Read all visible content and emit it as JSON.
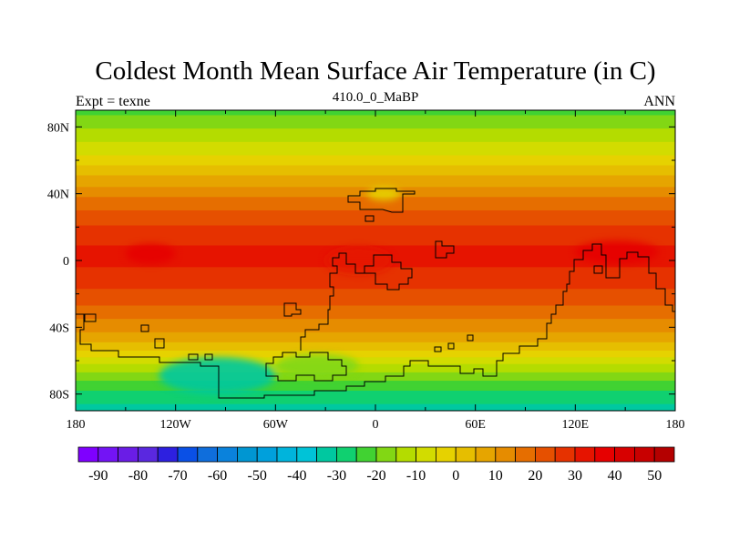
{
  "chart_data": {
    "type": "heatmap",
    "title": "Coldest Month Mean Surface Air Temperature (in C)",
    "left_label": "Expt = texne",
    "center_label": "410.0_0_MaBP",
    "right_label": "ANN",
    "x_ticks": [
      "180",
      "120W",
      "60W",
      "0",
      "60E",
      "120E",
      "180"
    ],
    "x_tick_values": [
      -180,
      -120,
      -60,
      0,
      60,
      120,
      180
    ],
    "y_ticks": [
      "80N",
      "40N",
      "0",
      "40S",
      "80S"
    ],
    "y_tick_values": [
      80,
      40,
      0,
      -40,
      -80
    ],
    "xlim": [
      -180,
      180
    ],
    "ylim": [
      -90,
      90
    ],
    "colorbar": {
      "labels": [
        "-90",
        "-80",
        "-70",
        "-60",
        "-50",
        "-40",
        "-30",
        "-20",
        "-10",
        "0",
        "10",
        "20",
        "30",
        "40",
        "50"
      ],
      "min": -95,
      "max": 55,
      "step": 5,
      "colors": [
        "#7f00ff",
        "#7314f5",
        "#6a1de6",
        "#5a28e0",
        "#2d20e0",
        "#0a50e6",
        "#0f6edc",
        "#0a82dc",
        "#0096d2",
        "#00a0dc",
        "#00b4dc",
        "#00c3d7",
        "#00c8a0",
        "#10d070",
        "#41d232",
        "#82d714",
        "#b4dc00",
        "#d2dc00",
        "#e6d200",
        "#e6be00",
        "#e6a500",
        "#e68c00",
        "#e66e00",
        "#e65000",
        "#e63200",
        "#e61400",
        "#e60000",
        "#d70000",
        "#c80000",
        "#b40000"
      ]
    },
    "temperature_by_latitude": {
      "lat": [
        90,
        84,
        76,
        68,
        60,
        52,
        44,
        36,
        26,
        16,
        6,
        -4,
        -14,
        -24,
        -32,
        -40,
        -48,
        -56,
        -62,
        -70,
        -78,
        -86,
        -90
      ],
      "temp_c": [
        -22,
        -18,
        -13,
        -8,
        -3,
        4,
        10,
        17,
        22,
        28,
        31,
        30,
        26,
        22,
        17,
        12,
        6,
        -2,
        -10,
        -18,
        -25,
        -30,
        -32
      ]
    },
    "land_anomalies": [
      {
        "region": "north-land",
        "lon": [
          -5,
          15
        ],
        "lat": [
          36,
          44
        ],
        "temp_c": -5
      },
      {
        "region": "equatorial-west",
        "lon": [
          -150,
          -120
        ],
        "lat": [
          -2,
          10
        ],
        "temp_c": 35
      },
      {
        "region": "equatorial-central",
        "lon": [
          -30,
          10
        ],
        "lat": [
          -8,
          8
        ],
        "temp_c": 34
      },
      {
        "region": "equatorial-east",
        "lon": [
          120,
          170
        ],
        "lat": [
          -2,
          12
        ],
        "temp_c": 35
      },
      {
        "region": "south-cold-1",
        "lon": [
          -130,
          -60
        ],
        "lat": [
          -80,
          -58
        ],
        "temp_c": -35
      },
      {
        "region": "south-cold-2",
        "lon": [
          -60,
          -10
        ],
        "lat": [
          -70,
          -56
        ],
        "temp_c": -20
      }
    ]
  }
}
